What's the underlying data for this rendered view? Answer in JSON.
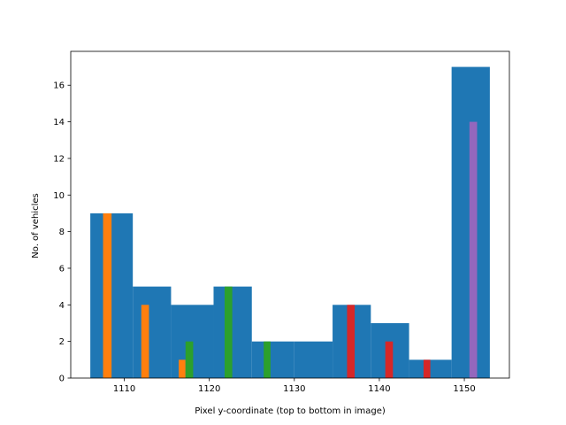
{
  "chart_data": {
    "type": "bar",
    "xlabel": "Pixel y-coordinate (top to bottom in image)",
    "ylabel": "No. of vehicles",
    "xlim": [
      1103.7,
      1155.3
    ],
    "ylim": [
      0,
      17.85
    ],
    "xticks": [
      1110,
      1120,
      1130,
      1140,
      1150
    ],
    "yticks": [
      0,
      2,
      4,
      6,
      8,
      10,
      12,
      14,
      16
    ],
    "grid": false,
    "legend": "none",
    "series": [
      {
        "color": "#1f77b4",
        "bars": [
          {
            "x0": 1106,
            "x1": 1111,
            "y": 9
          },
          {
            "x0": 1111,
            "x1": 1115.5,
            "y": 5
          },
          {
            "x0": 1115.5,
            "x1": 1120.5,
            "y": 4
          },
          {
            "x0": 1120.5,
            "x1": 1125,
            "y": 5
          },
          {
            "x0": 1125,
            "x1": 1130,
            "y": 2
          },
          {
            "x0": 1130,
            "x1": 1134.5,
            "y": 2
          },
          {
            "x0": 1134.5,
            "x1": 1139,
            "y": 4
          },
          {
            "x0": 1139,
            "x1": 1143.5,
            "y": 3
          },
          {
            "x0": 1143.5,
            "x1": 1148.5,
            "y": 1
          },
          {
            "x0": 1148.5,
            "x1": 1153,
            "y": 17
          }
        ]
      },
      {
        "color": "#ff7f0e",
        "bars": [
          {
            "x0": 1107.5,
            "x1": 1108.5,
            "y": 9
          },
          {
            "x0": 1112,
            "x1": 1112.9,
            "y": 4
          },
          {
            "x0": 1116.4,
            "x1": 1117.2,
            "y": 1
          }
        ]
      },
      {
        "color": "#2ca02c",
        "bars": [
          {
            "x0": 1117.2,
            "x1": 1118.1,
            "y": 2
          },
          {
            "x0": 1121.8,
            "x1": 1122.7,
            "y": 5
          },
          {
            "x0": 1126.4,
            "x1": 1127.2,
            "y": 2
          }
        ]
      },
      {
        "color": "#d62728",
        "bars": [
          {
            "x0": 1136.2,
            "x1": 1137.1,
            "y": 4
          },
          {
            "x0": 1140.7,
            "x1": 1141.6,
            "y": 2
          },
          {
            "x0": 1145.2,
            "x1": 1146,
            "y": 1
          }
        ]
      },
      {
        "color": "#9467bd",
        "bars": [
          {
            "x0": 1150.6,
            "x1": 1151.5,
            "y": 14
          }
        ]
      }
    ]
  }
}
